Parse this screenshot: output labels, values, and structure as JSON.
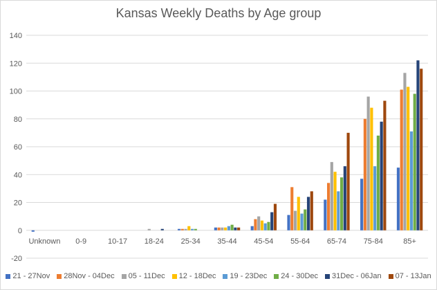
{
  "chart_data": {
    "type": "bar",
    "title": "Kansas Weekly Deaths by Age group",
    "xlabel": "",
    "ylabel": "",
    "ylim": [
      -20,
      140
    ],
    "yticks": [
      -20,
      0,
      20,
      40,
      60,
      80,
      100,
      120,
      140
    ],
    "grid": true,
    "legend_position": "bottom",
    "categories": [
      "Unknown",
      "0-9",
      "10-17",
      "18-24",
      "25-34",
      "35-44",
      "45-54",
      "55-64",
      "65-74",
      "75-84",
      "85+"
    ],
    "series": [
      {
        "name": "21 - 27Nov",
        "color": "#4472C4",
        "values": [
          -1,
          0,
          0,
          0,
          1,
          2,
          3,
          11,
          22,
          37,
          45
        ]
      },
      {
        "name": "28Nov - 04Dec",
        "color": "#ED7D31",
        "values": [
          0,
          0,
          0,
          0,
          1,
          2,
          8,
          31,
          34,
          80,
          101
        ]
      },
      {
        "name": "05 - 11Dec",
        "color": "#A5A5A5",
        "values": [
          0,
          0,
          0,
          1,
          1,
          2,
          10,
          14,
          49,
          96,
          113
        ]
      },
      {
        "name": "12 - 18Dec",
        "color": "#FFC000",
        "values": [
          0,
          0,
          0,
          0,
          3,
          2,
          7,
          24,
          42,
          88,
          103
        ]
      },
      {
        "name": "19 - 23Dec",
        "color": "#5B9BD5",
        "values": [
          0,
          0,
          0,
          0,
          1,
          3,
          5,
          12,
          28,
          46,
          71
        ]
      },
      {
        "name": "24 - 30Dec",
        "color": "#70AD47",
        "values": [
          0,
          0,
          0,
          0,
          1,
          4,
          6,
          15,
          38,
          68,
          98
        ]
      },
      {
        "name": "31Dec - 06Jan",
        "color": "#264478",
        "values": [
          0,
          0,
          0,
          1,
          0,
          2,
          13,
          24,
          46,
          78,
          122
        ]
      },
      {
        "name": "07 - 13Jan",
        "color": "#9E480E",
        "values": [
          0,
          0,
          0,
          0,
          0,
          2,
          19,
          28,
          70,
          93,
          116
        ]
      }
    ]
  }
}
